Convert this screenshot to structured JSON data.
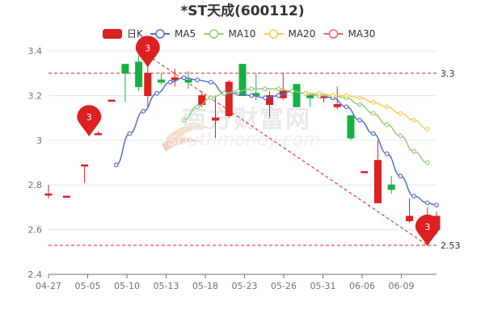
{
  "chart_data": {
    "type": "candlestick",
    "title": "*ST天成(600112)",
    "x_tick_labels": [
      "04-27",
      "05-05",
      "05-10",
      "05-13",
      "05-18",
      "05-23",
      "05-26",
      "05-31",
      "06-06",
      "06-09"
    ],
    "y_tick_labels": [
      "2.4",
      "2.6",
      "2.8",
      "3",
      "3.2",
      "3.4"
    ],
    "ylim": [
      2.4,
      3.44
    ],
    "grid": "horizontal",
    "legend": {
      "placement": "top-center",
      "items": [
        {
          "name": "日K",
          "type": "candle",
          "color": "#dd2020"
        },
        {
          "name": "MA5",
          "type": "line",
          "color": "#5470c6"
        },
        {
          "name": "MA10",
          "type": "line",
          "color": "#91cc75"
        },
        {
          "name": "MA20",
          "type": "line",
          "color": "#fac858"
        },
        {
          "name": "MA30",
          "type": "line",
          "color": "#ee6666"
        }
      ]
    },
    "reference_lines": [
      {
        "value": 3.3,
        "label": "3.3",
        "color": "#dd2020"
      },
      {
        "value": 2.53,
        "label": "2.53",
        "color": "#dd2020"
      }
    ],
    "trend_line": {
      "from": {
        "x": 11,
        "y": 3.38
      },
      "to": {
        "x": 42,
        "y": 2.53
      },
      "color": "#dd2020"
    },
    "markers": [
      {
        "x": 11,
        "y": 3.37,
        "label": "3",
        "color": "#dd2020"
      },
      {
        "x": 4.5,
        "y": 3.06,
        "label": "3",
        "color": "#dd2020"
      },
      {
        "x": 42,
        "y": 2.57,
        "label": "3",
        "color": "#dd2020"
      }
    ],
    "colors": {
      "up": "#14b143",
      "down": "#dd2020",
      "flat": "#333333"
    },
    "candles": [
      {
        "x": 0,
        "o": 2.76,
        "c": 2.76,
        "h": 2.8,
        "l": 2.74
      },
      {
        "x": 2,
        "o": 2.75,
        "c": 2.75,
        "h": 2.75,
        "l": 2.75
      },
      {
        "x": 4,
        "o": 2.89,
        "c": 2.89,
        "h": 2.89,
        "l": 2.81
      },
      {
        "x": 5.5,
        "o": 3.03,
        "c": 3.03,
        "h": 3.04,
        "l": 3.03
      },
      {
        "x": 7,
        "o": 3.18,
        "c": 3.18,
        "h": 3.18,
        "l": 3.18
      },
      {
        "x": 8.5,
        "o": 3.3,
        "c": 3.34,
        "h": 3.34,
        "l": 3.17
      },
      {
        "x": 10,
        "o": 3.24,
        "c": 3.35,
        "h": 3.38,
        "l": 3.22
      },
      {
        "x": 11,
        "o": 3.3,
        "c": 3.2,
        "h": 3.39,
        "l": 3.15
      },
      {
        "x": 12.5,
        "o": 3.26,
        "c": 3.27,
        "h": 3.3,
        "l": 3.25
      },
      {
        "x": 14,
        "o": 3.28,
        "c": 3.27,
        "h": 3.32,
        "l": 3.24
      },
      {
        "x": 15.5,
        "o": 3.26,
        "c": 3.27,
        "h": 3.31,
        "l": 3.23
      },
      {
        "x": 17,
        "o": 3.2,
        "c": 3.16,
        "h": 3.22,
        "l": 3.15
      },
      {
        "x": 18.5,
        "o": 3.1,
        "c": 3.09,
        "h": 3.2,
        "l": 3.01
      },
      {
        "x": 20,
        "o": 3.26,
        "c": 3.11,
        "h": 3.27,
        "l": 3.1
      },
      {
        "x": 21.5,
        "o": 3.2,
        "c": 3.34,
        "h": 3.34,
        "l": 3.2
      },
      {
        "x": 23,
        "o": 3.2,
        "c": 3.21,
        "h": 3.3,
        "l": 3.18
      },
      {
        "x": 24.5,
        "o": 3.2,
        "c": 3.16,
        "h": 3.22,
        "l": 3.1
      },
      {
        "x": 26,
        "o": 3.22,
        "c": 3.19,
        "h": 3.3,
        "l": 3.18
      },
      {
        "x": 27.5,
        "o": 3.15,
        "c": 3.25,
        "h": 3.25,
        "l": 3.15
      },
      {
        "x": 29,
        "o": 3.19,
        "c": 3.2,
        "h": 3.21,
        "l": 3.15
      },
      {
        "x": 30.5,
        "o": 3.2,
        "c": 3.19,
        "h": 3.21,
        "l": 3.17
      },
      {
        "x": 32,
        "o": 3.16,
        "c": 3.15,
        "h": 3.24,
        "l": 3.14
      },
      {
        "x": 33.5,
        "o": 3.01,
        "c": 3.11,
        "h": 3.11,
        "l": 3.0
      },
      {
        "x": 35,
        "o": 2.86,
        "c": 2.86,
        "h": 2.86,
        "l": 2.86
      },
      {
        "x": 36.5,
        "o": 2.91,
        "c": 2.72,
        "h": 3.0,
        "l": 2.72
      },
      {
        "x": 38,
        "o": 2.78,
        "c": 2.8,
        "h": 2.84,
        "l": 2.76
      },
      {
        "x": 40,
        "o": 2.66,
        "c": 2.64,
        "h": 2.74,
        "l": 2.63
      },
      {
        "x": 42,
        "o": 2.61,
        "c": 2.6,
        "h": 2.7,
        "l": 2.56
      },
      {
        "x": 43,
        "o": 2.66,
        "c": 2.6,
        "h": 2.68,
        "l": 2.58
      }
    ],
    "ma_series": [
      {
        "name": "MA5",
        "color": "#5470c6",
        "points": [
          [
            7.5,
            2.89
          ],
          [
            9,
            3.03
          ],
          [
            10.5,
            3.13
          ],
          [
            12,
            3.21
          ],
          [
            13.5,
            3.26
          ],
          [
            15,
            3.28
          ],
          [
            16.5,
            3.27
          ],
          [
            18,
            3.26
          ],
          [
            19.5,
            3.21
          ],
          [
            21,
            3.21
          ],
          [
            22.5,
            3.2
          ],
          [
            24,
            3.19
          ],
          [
            25.5,
            3.2
          ],
          [
            27,
            3.22
          ],
          [
            28.5,
            3.21
          ],
          [
            30,
            3.2
          ],
          [
            31.5,
            3.19
          ],
          [
            33,
            3.15
          ],
          [
            34.5,
            3.09
          ],
          [
            36,
            3.03
          ],
          [
            37.5,
            2.94
          ],
          [
            39,
            2.84
          ],
          [
            40.5,
            2.75
          ],
          [
            42,
            2.72
          ],
          [
            43,
            2.71
          ]
        ]
      },
      {
        "name": "MA10",
        "color": "#91cc75",
        "points": [
          [
            15,
            3.09
          ],
          [
            16.5,
            3.15
          ],
          [
            18,
            3.19
          ],
          [
            19.5,
            3.21
          ],
          [
            21,
            3.22
          ],
          [
            22.5,
            3.23
          ],
          [
            24,
            3.23
          ],
          [
            25.5,
            3.23
          ],
          [
            27,
            3.22
          ],
          [
            28.5,
            3.21
          ],
          [
            30,
            3.2
          ],
          [
            31.5,
            3.2
          ],
          [
            33,
            3.19
          ],
          [
            34.5,
            3.16
          ],
          [
            36,
            3.12
          ],
          [
            37.5,
            3.07
          ],
          [
            39,
            3.02
          ],
          [
            40.5,
            2.95
          ],
          [
            42,
            2.9
          ]
        ]
      },
      {
        "name": "MA20",
        "color": "#fac858",
        "points": [
          [
            28.5,
            3.21
          ],
          [
            30,
            3.21
          ],
          [
            31.5,
            3.2
          ],
          [
            33,
            3.2
          ],
          [
            34.5,
            3.19
          ],
          [
            36,
            3.17
          ],
          [
            37.5,
            3.15
          ],
          [
            39,
            3.12
          ],
          [
            40.5,
            3.09
          ],
          [
            42,
            3.05
          ]
        ]
      }
    ]
  }
}
